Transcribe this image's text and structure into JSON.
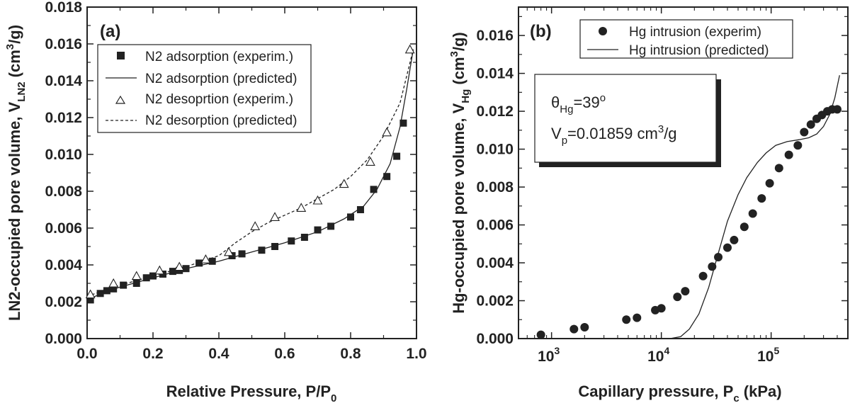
{
  "chart_data": [
    {
      "type": "scatter",
      "panel_label": "(a)",
      "xlabel_main": "Relative Pressure, P/P",
      "xlabel_sub": "0",
      "ylabel_main": "LN2-occupied pore volume, V",
      "ylabel_sub": "LN2",
      "ylabel_unit_pre": " (cm",
      "ylabel_unit_sup": "3",
      "ylabel_unit_post": "/g)",
      "xlim": [
        0.0,
        1.0
      ],
      "ylim": [
        0.0,
        0.018
      ],
      "xticks": [
        "0.0",
        "0.2",
        "0.4",
        "0.6",
        "0.8",
        "1.0"
      ],
      "yticks": [
        "0.000",
        "0.002",
        "0.004",
        "0.006",
        "0.008",
        "0.010",
        "0.012",
        "0.014",
        "0.016",
        "0.018"
      ],
      "legend_position": "top-left",
      "series": [
        {
          "name": "N2 adsorption (experim.)",
          "style": "filled-square",
          "x": [
            0.01,
            0.04,
            0.06,
            0.08,
            0.11,
            0.15,
            0.18,
            0.2,
            0.23,
            0.26,
            0.28,
            0.3,
            0.34,
            0.38,
            0.44,
            0.47,
            0.53,
            0.57,
            0.62,
            0.66,
            0.7,
            0.74,
            0.8,
            0.83,
            0.87,
            0.91,
            0.94,
            0.96
          ],
          "y": [
            0.0021,
            0.00245,
            0.0026,
            0.0027,
            0.0029,
            0.003,
            0.0033,
            0.0034,
            0.0035,
            0.00365,
            0.0037,
            0.0038,
            0.0041,
            0.0042,
            0.0045,
            0.0046,
            0.0048,
            0.005,
            0.0053,
            0.0055,
            0.0059,
            0.0061,
            0.0066,
            0.007,
            0.0081,
            0.0088,
            0.0099,
            0.0117
          ]
        },
        {
          "name": "N2 adsorption (predicted)",
          "style": "solid-line",
          "x": [
            0.0,
            0.05,
            0.1,
            0.2,
            0.3,
            0.4,
            0.5,
            0.6,
            0.7,
            0.78,
            0.84,
            0.88,
            0.92,
            0.95,
            0.97,
            0.99
          ],
          "y": [
            0.0021,
            0.0025,
            0.0028,
            0.0033,
            0.0038,
            0.0042,
            0.0047,
            0.0052,
            0.0058,
            0.0065,
            0.0072,
            0.0081,
            0.0095,
            0.0115,
            0.0135,
            0.0157
          ]
        },
        {
          "name": "N2 desoprtion (experim.)",
          "style": "open-triangle",
          "x": [
            0.01,
            0.08,
            0.15,
            0.22,
            0.28,
            0.36,
            0.43,
            0.51,
            0.57,
            0.65,
            0.7,
            0.78,
            0.86,
            0.91,
            0.98
          ],
          "y": [
            0.0024,
            0.003,
            0.0034,
            0.0037,
            0.0039,
            0.0043,
            0.0047,
            0.0061,
            0.0066,
            0.0071,
            0.0075,
            0.0084,
            0.0096,
            0.0112,
            0.0157
          ]
        },
        {
          "name": "N2 desorption (predicted)",
          "legend_label": "N2 desorption (predicted)",
          "style": "dashed-line",
          "x": [
            0.0,
            0.1,
            0.2,
            0.3,
            0.4,
            0.45,
            0.5,
            0.55,
            0.6,
            0.65,
            0.7,
            0.75,
            0.8,
            0.85,
            0.9,
            0.95,
            0.99
          ],
          "y": [
            0.0023,
            0.0029,
            0.0034,
            0.0039,
            0.0045,
            0.0052,
            0.0058,
            0.0063,
            0.0067,
            0.0071,
            0.0076,
            0.0081,
            0.0088,
            0.0097,
            0.011,
            0.0128,
            0.0157
          ]
        }
      ]
    },
    {
      "type": "scatter",
      "panel_label": "(b)",
      "xscale": "log",
      "xlabel_main": "Capillary pressure, P",
      "xlabel_sub": "c",
      "xlabel_post": " (kPa)",
      "ylabel_main": "Hg-occupied pore volume, V",
      "ylabel_sub": "Hg",
      "ylabel_unit_pre": " (cm",
      "ylabel_unit_sup": "3",
      "ylabel_unit_post": "/g)",
      "xlim": [
        500,
        500000
      ],
      "ylim": [
        0.0,
        0.0175
      ],
      "xticks": [
        {
          "value": 1000,
          "base": "10",
          "exp": "3"
        },
        {
          "value": 10000,
          "base": "10",
          "exp": "4"
        },
        {
          "value": 100000,
          "base": "10",
          "exp": "5"
        }
      ],
      "yticks": [
        "0.000",
        "0.002",
        "0.004",
        "0.006",
        "0.008",
        "0.010",
        "0.012",
        "0.014",
        "0.016"
      ],
      "legend_position": "top-right",
      "annotation": {
        "theta_pre": "θ",
        "theta_sub": "Hg",
        "theta_mid": "=39",
        "theta_sup": "o",
        "vp_pre": "V",
        "vp_sub": "p",
        "vp_mid": "=0.01859 cm",
        "vp_sup": "3",
        "vp_post": "/g"
      },
      "series": [
        {
          "name": "Hg intrusion (experim)",
          "style": "filled-circle",
          "x": [
            800,
            1600,
            2000,
            4800,
            6000,
            8800,
            10000,
            14000,
            16500,
            24000,
            29000,
            33000,
            40000,
            46000,
            57000,
            68000,
            82000,
            97000,
            118000,
            145000,
            175000,
            200000,
            230000,
            260000,
            290000,
            325000,
            360000,
            400000
          ],
          "y": [
            0.0002,
            0.0005,
            0.0006,
            0.001,
            0.0011,
            0.0015,
            0.0016,
            0.0022,
            0.0025,
            0.0033,
            0.0038,
            0.0043,
            0.0048,
            0.0052,
            0.0059,
            0.0066,
            0.0074,
            0.0082,
            0.009,
            0.0097,
            0.0102,
            0.0109,
            0.0113,
            0.0116,
            0.0118,
            0.012,
            0.0121,
            0.0121
          ]
        },
        {
          "name": "Hg intrusion (predicted)",
          "style": "solid-line",
          "x": [
            12000,
            15000,
            18000,
            22000,
            27000,
            33000,
            40000,
            50000,
            60000,
            75000,
            90000,
            110000,
            140000,
            180000,
            220000,
            260000,
            300000,
            340000,
            380000,
            420000
          ],
          "y": [
            0.0,
            0.0001,
            0.0005,
            0.0013,
            0.0027,
            0.0045,
            0.0062,
            0.0076,
            0.0085,
            0.0093,
            0.0098,
            0.0102,
            0.0104,
            0.0105,
            0.0106,
            0.0108,
            0.0112,
            0.0118,
            0.0127,
            0.0139
          ]
        }
      ]
    }
  ]
}
